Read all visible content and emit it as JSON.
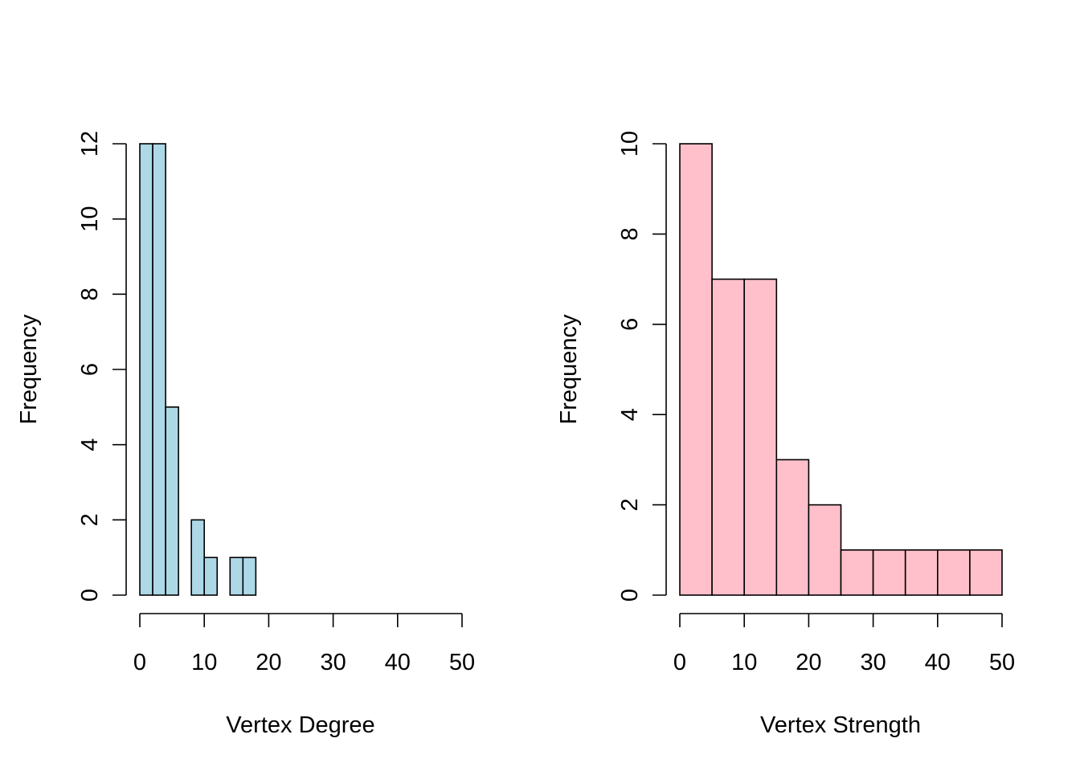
{
  "chart_data": [
    {
      "type": "bar",
      "subtype": "histogram",
      "title": "",
      "xlabel": "Vertex Degree",
      "ylabel": "Frequency",
      "bin_width": 2,
      "bins": [
        {
          "start": 0,
          "end": 2,
          "count": 12
        },
        {
          "start": 2,
          "end": 4,
          "count": 12
        },
        {
          "start": 4,
          "end": 6,
          "count": 5
        },
        {
          "start": 6,
          "end": 8,
          "count": 0
        },
        {
          "start": 8,
          "end": 10,
          "count": 2
        },
        {
          "start": 10,
          "end": 12,
          "count": 1
        },
        {
          "start": 12,
          "end": 14,
          "count": 0
        },
        {
          "start": 14,
          "end": 16,
          "count": 1
        },
        {
          "start": 16,
          "end": 18,
          "count": 1
        }
      ],
      "xlim": [
        0,
        50
      ],
      "ylim": [
        0,
        12
      ],
      "xticks": [
        "0",
        "10",
        "20",
        "30",
        "40",
        "50"
      ],
      "yticks": [
        "0",
        "2",
        "4",
        "6",
        "8",
        "10",
        "12"
      ],
      "fill_color": "#add8e6",
      "grid": false
    },
    {
      "type": "bar",
      "subtype": "histogram",
      "title": "",
      "xlabel": "Vertex Strength",
      "ylabel": "Frequency",
      "bin_width": 5,
      "bins": [
        {
          "start": 0,
          "end": 5,
          "count": 10
        },
        {
          "start": 5,
          "end": 10,
          "count": 7
        },
        {
          "start": 10,
          "end": 15,
          "count": 7
        },
        {
          "start": 15,
          "end": 20,
          "count": 3
        },
        {
          "start": 20,
          "end": 25,
          "count": 2
        },
        {
          "start": 25,
          "end": 30,
          "count": 1
        },
        {
          "start": 30,
          "end": 35,
          "count": 1
        },
        {
          "start": 35,
          "end": 40,
          "count": 1
        },
        {
          "start": 40,
          "end": 45,
          "count": 1
        },
        {
          "start": 45,
          "end": 50,
          "count": 1
        }
      ],
      "xlim": [
        0,
        50
      ],
      "ylim": [
        0,
        10
      ],
      "xticks": [
        "0",
        "10",
        "20",
        "30",
        "40",
        "50"
      ],
      "yticks": [
        "0",
        "2",
        "4",
        "6",
        "8",
        "10"
      ],
      "fill_color": "#ffc0cb",
      "grid": false
    }
  ]
}
